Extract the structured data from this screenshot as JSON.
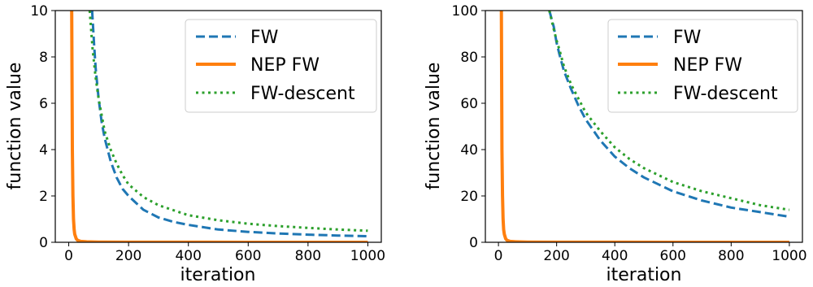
{
  "chart_data": [
    {
      "type": "line",
      "xlabel": "iteration",
      "ylabel": "function value",
      "xlim": [
        -45,
        1045
      ],
      "ylim": [
        0,
        10
      ],
      "xticks": [
        0,
        200,
        400,
        600,
        800,
        1000
      ],
      "yticks": [
        0,
        2,
        4,
        6,
        8,
        10
      ],
      "grid": false,
      "legend_position": "top-right",
      "series": [
        {
          "name": "FW",
          "color": "#1f77b4",
          "style": "dashed",
          "x": [
            78,
            85,
            90,
            100,
            110,
            120,
            140,
            160,
            180,
            200,
            250,
            300,
            350,
            400,
            500,
            600,
            700,
            800,
            900,
            1000
          ],
          "y": [
            10.0,
            8.5,
            7.5,
            6.2,
            5.2,
            4.5,
            3.5,
            2.8,
            2.3,
            2.0,
            1.4,
            1.07,
            0.88,
            0.75,
            0.55,
            0.45,
            0.38,
            0.33,
            0.29,
            0.26
          ]
        },
        {
          "name": "NEP FW",
          "color": "#ff7f0e",
          "style": "solid",
          "x": [
            10,
            12,
            14,
            16,
            18,
            20,
            25,
            30,
            40,
            60,
            100,
            200,
            400,
            600,
            800,
            1000
          ],
          "y": [
            10.0,
            4.0,
            2.0,
            1.0,
            0.55,
            0.35,
            0.15,
            0.08,
            0.04,
            0.02,
            0.01,
            0.005,
            0.002,
            0.001,
            0.0008,
            0.0006
          ]
        },
        {
          "name": "FW-descent",
          "color": "#2ca02c",
          "style": "dotted",
          "x": [
            70,
            80,
            90,
            100,
            110,
            120,
            140,
            160,
            180,
            200,
            250,
            300,
            400,
            500,
            600,
            700,
            800,
            900,
            1000
          ],
          "y": [
            10.0,
            8.3,
            7.1,
            6.2,
            5.5,
            4.8,
            4.0,
            3.4,
            2.9,
            2.5,
            1.95,
            1.6,
            1.17,
            0.95,
            0.8,
            0.7,
            0.62,
            0.55,
            0.5
          ]
        }
      ]
    },
    {
      "type": "line",
      "xlabel": "iteration",
      "ylabel": "function value",
      "xlim": [
        -45,
        1045
      ],
      "ylim": [
        0,
        100
      ],
      "xticks": [
        0,
        200,
        400,
        600,
        800,
        1000
      ],
      "yticks": [
        0,
        20,
        40,
        60,
        80,
        100
      ],
      "grid": false,
      "legend_position": "top-right",
      "series": [
        {
          "name": "FW",
          "color": "#1f77b4",
          "style": "dashed",
          "x": [
            175,
            190,
            200,
            210,
            225,
            250,
            275,
            300,
            350,
            400,
            450,
            500,
            600,
            700,
            800,
            900,
            1000
          ],
          "y": [
            100,
            93,
            86,
            81,
            74,
            66,
            59,
            53,
            44,
            37,
            32,
            28,
            22,
            18,
            15,
            13,
            11
          ]
        },
        {
          "name": "NEP FW",
          "color": "#ff7f0e",
          "style": "solid",
          "x": [
            10,
            12,
            14,
            16,
            18,
            20,
            25,
            30,
            40,
            60,
            100,
            200,
            400,
            600,
            800,
            1000
          ],
          "y": [
            100,
            40,
            20,
            10,
            5.5,
            3.5,
            1.5,
            0.8,
            0.4,
            0.2,
            0.1,
            0.05,
            0.02,
            0.01,
            0.008,
            0.006
          ]
        },
        {
          "name": "FW-descent",
          "color": "#2ca02c",
          "style": "dotted",
          "x": [
            175,
            190,
            200,
            210,
            225,
            250,
            275,
            300,
            350,
            400,
            450,
            500,
            600,
            700,
            800,
            900,
            1000
          ],
          "y": [
            100,
            92,
            87,
            83,
            76,
            68,
            62,
            56,
            48,
            41,
            36,
            32,
            26,
            22,
            19,
            16,
            14
          ]
        }
      ]
    }
  ]
}
